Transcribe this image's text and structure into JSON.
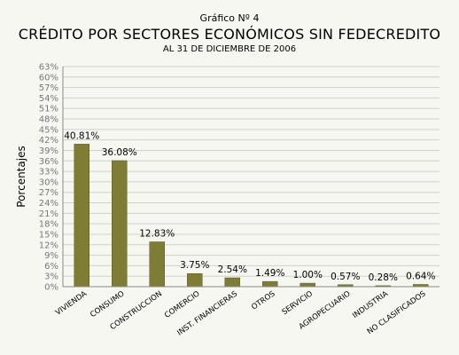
{
  "header": {
    "pretitle": "Gráfico Nº 4",
    "title": "CRÉDITO POR SECTORES ECONÓMICOS SIN FEDECREDITO",
    "subtitle": "AL 31 DE DICIEMBRE DE 2006"
  },
  "chart_data": {
    "type": "bar",
    "title": "CRÉDITO POR SECTORES ECONÓMICOS SIN FEDECREDITO",
    "subtitle": "AL 31 DE DICIEMBRE DE 2006",
    "xlabel": "",
    "ylabel": "Porcentajes",
    "categories": [
      "VIVIENDA",
      "CONSUMO",
      "CONSTRUCCION",
      "COMERCIO",
      "INST. FINANCIERAS",
      "OTROS",
      "SERVICIO",
      "AGROPECUARIO",
      "INDUSTRIA",
      "NO CLASIFICADOS"
    ],
    "values": [
      40.81,
      36.08,
      12.83,
      3.75,
      2.54,
      1.49,
      1.0,
      0.57,
      0.28,
      0.64
    ],
    "data_labels": [
      "40.81%",
      "36.08%",
      "12.83%",
      "3.75%",
      "2.54%",
      "1.49%",
      "1.00%",
      "0.57%",
      "0.28%",
      "0.64%"
    ],
    "ylim": [
      0,
      63
    ],
    "yticks": [
      0,
      3,
      6,
      9,
      12,
      15,
      18,
      21,
      24,
      27,
      30,
      33,
      36,
      39,
      42,
      45,
      48,
      51,
      54,
      57,
      60,
      63
    ],
    "ytick_labels": [
      "0%",
      "3%",
      "6%",
      "9%",
      "12%",
      "15%",
      "18%",
      "21%",
      "24%",
      "27%",
      "30%",
      "33%",
      "36%",
      "39%",
      "42%",
      "45%",
      "48%",
      "51%",
      "54%",
      "57%",
      "60%",
      "63%"
    ],
    "grid": true,
    "legend": "none",
    "colors": {
      "bar": "#7f7c35",
      "bar_edge": "#5e5b22",
      "grid": "#d0d0cc",
      "axis": "#888888",
      "tick_text": "#777777",
      "background": "#f7f7f2"
    }
  }
}
